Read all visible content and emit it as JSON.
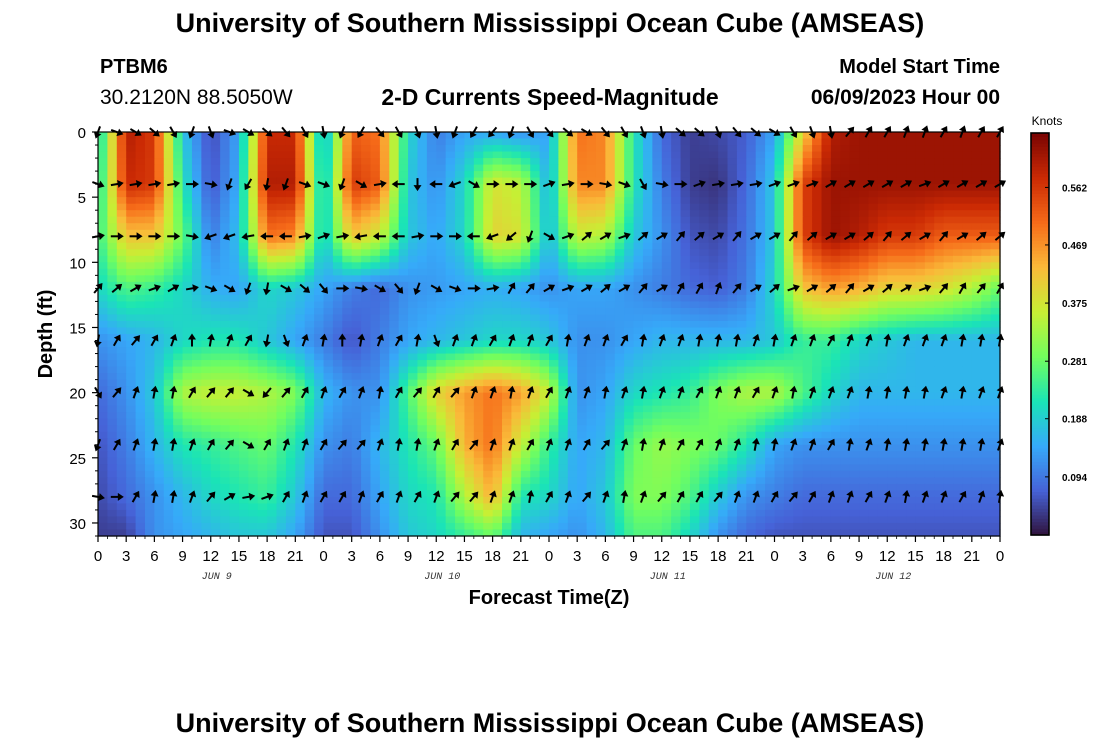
{
  "header": {
    "title": "University of Southern Mississippi Ocean Cube (AMSEAS)",
    "station_id": "PTBM6",
    "station_coords": "30.2120N  88.5050W",
    "subtitle": "2-D Currents Speed-Magnitude",
    "model_start_label": "Model Start Time",
    "model_start_value": "06/09/2023 Hour 00"
  },
  "footer": {
    "title": "University of Southern Mississippi Ocean Cube (AMSEAS)"
  },
  "chart_data": {
    "type": "heatmap",
    "title": "2-D Currents Speed-Magnitude",
    "xlabel": "Forecast Time(Z)",
    "ylabel": "Depth (ft)",
    "x_range_hours": [
      0,
      96
    ],
    "ylim": [
      0,
      31
    ],
    "y_ticks": [
      0,
      5,
      10,
      15,
      20,
      25,
      30
    ],
    "x_tick_labels": [
      "0",
      "3",
      "6",
      "9",
      "12",
      "15",
      "18",
      "21",
      "0",
      "3",
      "6",
      "9",
      "12",
      "15",
      "18",
      "21",
      "0",
      "3",
      "6",
      "9",
      "12",
      "15",
      "18",
      "21",
      "0",
      "3",
      "6",
      "9",
      "12",
      "15",
      "18",
      "21",
      "0"
    ],
    "day_labels": [
      "JUN 9",
      "JUN 10",
      "JUN 11",
      "JUN 12"
    ],
    "colorbar": {
      "label": "Knots",
      "min": 0,
      "max": 0.65,
      "ticks": [
        0.094,
        0.188,
        0.281,
        0.375,
        0.469,
        0.562
      ],
      "tick_labels": [
        "0.094",
        "0.188",
        "0.281",
        "0.375",
        "0.469",
        "0.562"
      ],
      "colors": [
        "#30123b",
        "#4662d7",
        "#36aaf9",
        "#1ae4b6",
        "#72fe5e",
        "#c7ef34",
        "#faba39",
        "#f66b19",
        "#cb2a04",
        "#7a0403"
      ]
    },
    "depth_levels_ft": [
      0,
      4,
      8,
      12,
      16,
      20,
      24,
      28,
      31
    ],
    "time_bins_hours": [
      0,
      3,
      6,
      9,
      12,
      15,
      18,
      21,
      24,
      27,
      30,
      33,
      36,
      39,
      42,
      45,
      48,
      51,
      54,
      57,
      60,
      63,
      66,
      69,
      72,
      75,
      78,
      81,
      84,
      87,
      90,
      93,
      96
    ],
    "speed_knots": [
      [
        0.18,
        0.6,
        0.56,
        0.18,
        0.05,
        0.14,
        0.58,
        0.58,
        0.14,
        0.52,
        0.5,
        0.2,
        0.1,
        0.14,
        0.14,
        0.12,
        0.14,
        0.5,
        0.48,
        0.22,
        0.08,
        0.04,
        0.05,
        0.07,
        0.14,
        0.4,
        0.6,
        0.62,
        0.62,
        0.62,
        0.62,
        0.62,
        0.62
      ],
      [
        0.2,
        0.58,
        0.56,
        0.22,
        0.06,
        0.15,
        0.6,
        0.6,
        0.16,
        0.56,
        0.52,
        0.18,
        0.12,
        0.2,
        0.38,
        0.35,
        0.15,
        0.48,
        0.48,
        0.22,
        0.1,
        0.04,
        0.03,
        0.08,
        0.18,
        0.55,
        0.62,
        0.62,
        0.62,
        0.62,
        0.62,
        0.62,
        0.62
      ],
      [
        0.24,
        0.42,
        0.42,
        0.28,
        0.1,
        0.17,
        0.5,
        0.48,
        0.18,
        0.42,
        0.36,
        0.18,
        0.14,
        0.2,
        0.4,
        0.38,
        0.16,
        0.36,
        0.34,
        0.18,
        0.12,
        0.06,
        0.05,
        0.09,
        0.18,
        0.55,
        0.62,
        0.6,
        0.56,
        0.56,
        0.52,
        0.52,
        0.52
      ],
      [
        0.2,
        0.26,
        0.24,
        0.2,
        0.15,
        0.14,
        0.2,
        0.18,
        0.14,
        0.1,
        0.08,
        0.12,
        0.13,
        0.14,
        0.15,
        0.14,
        0.12,
        0.14,
        0.14,
        0.12,
        0.1,
        0.08,
        0.07,
        0.1,
        0.2,
        0.42,
        0.46,
        0.44,
        0.4,
        0.4,
        0.38,
        0.34,
        0.28
      ],
      [
        0.12,
        0.14,
        0.16,
        0.2,
        0.22,
        0.22,
        0.18,
        0.14,
        0.1,
        0.06,
        0.1,
        0.14,
        0.16,
        0.18,
        0.2,
        0.2,
        0.18,
        0.12,
        0.12,
        0.14,
        0.16,
        0.16,
        0.16,
        0.16,
        0.18,
        0.24,
        0.24,
        0.2,
        0.18,
        0.16,
        0.16,
        0.16,
        0.16
      ],
      [
        0.08,
        0.12,
        0.18,
        0.34,
        0.36,
        0.36,
        0.34,
        0.3,
        0.16,
        0.12,
        0.12,
        0.26,
        0.4,
        0.46,
        0.5,
        0.46,
        0.36,
        0.12,
        0.14,
        0.2,
        0.22,
        0.24,
        0.3,
        0.34,
        0.34,
        0.26,
        0.2,
        0.16,
        0.16,
        0.16,
        0.16,
        0.16,
        0.16
      ],
      [
        0.06,
        0.1,
        0.16,
        0.22,
        0.24,
        0.26,
        0.28,
        0.22,
        0.12,
        0.1,
        0.16,
        0.22,
        0.28,
        0.44,
        0.5,
        0.36,
        0.24,
        0.14,
        0.16,
        0.28,
        0.32,
        0.3,
        0.28,
        0.22,
        0.14,
        0.12,
        0.12,
        0.12,
        0.12,
        0.12,
        0.12,
        0.12,
        0.12
      ],
      [
        0.05,
        0.08,
        0.12,
        0.16,
        0.2,
        0.22,
        0.24,
        0.18,
        0.08,
        0.08,
        0.14,
        0.2,
        0.22,
        0.34,
        0.44,
        0.22,
        0.2,
        0.14,
        0.18,
        0.3,
        0.3,
        0.26,
        0.18,
        0.12,
        0.1,
        0.08,
        0.08,
        0.08,
        0.08,
        0.08,
        0.08,
        0.08,
        0.08
      ],
      [
        0.04,
        0.04,
        0.12,
        0.14,
        0.16,
        0.18,
        0.18,
        0.14,
        0.06,
        0.06,
        0.12,
        0.18,
        0.2,
        0.24,
        0.28,
        0.16,
        0.14,
        0.12,
        0.16,
        0.26,
        0.26,
        0.2,
        0.12,
        0.08,
        0.06,
        0.06,
        0.06,
        0.06,
        0.06,
        0.06,
        0.06,
        0.06,
        0.06
      ]
    ],
    "arrow_depths_ft": [
      0,
      4,
      8,
      12,
      16,
      20,
      24,
      28
    ],
    "arrow_times_hours": [
      0,
      2,
      4,
      6,
      8,
      10,
      12,
      14,
      16,
      18,
      20,
      22,
      24,
      26,
      28,
      30,
      32,
      34,
      36,
      38,
      40,
      42,
      44,
      46,
      48,
      50,
      52,
      54,
      56,
      58,
      60,
      62,
      64,
      66,
      68,
      70,
      72,
      74,
      76,
      78,
      80,
      82,
      84,
      86,
      88,
      90,
      92,
      94,
      96
    ],
    "arrow_directions_deg": [
      [
        200,
        110,
        120,
        130,
        150,
        200,
        160,
        110,
        120,
        130,
        140,
        150,
        170,
        200,
        210,
        140,
        150,
        160,
        170,
        200,
        210,
        220,
        200,
        150,
        140,
        130,
        120,
        140,
        150,
        160,
        170,
        130,
        130,
        160,
        140,
        130,
        120,
        150,
        160,
        170,
        40,
        30,
        30,
        20,
        20,
        30,
        20,
        30,
        30
      ],
      [
        110,
        80,
        80,
        80,
        80,
        90,
        100,
        200,
        210,
        190,
        200,
        110,
        110,
        200,
        120,
        80,
        270,
        180,
        270,
        250,
        120,
        90,
        90,
        90,
        70,
        80,
        90,
        100,
        110,
        150,
        100,
        90,
        70,
        80,
        80,
        80,
        70,
        70,
        70,
        60,
        60,
        60,
        60,
        60,
        70,
        60,
        60,
        60,
        60
      ],
      [
        80,
        90,
        90,
        90,
        90,
        100,
        250,
        250,
        260,
        270,
        270,
        80,
        70,
        80,
        260,
        270,
        270,
        80,
        90,
        90,
        270,
        250,
        230,
        200,
        120,
        70,
        50,
        60,
        70,
        50,
        60,
        40,
        50,
        60,
        40,
        60,
        60,
        40,
        50,
        60,
        60,
        50,
        40,
        50,
        60,
        40,
        60,
        50,
        50
      ],
      [
        40,
        50,
        60,
        70,
        60,
        80,
        110,
        120,
        200,
        190,
        120,
        130,
        140,
        90,
        100,
        120,
        140,
        200,
        120,
        110,
        90,
        80,
        30,
        40,
        60,
        70,
        60,
        50,
        60,
        40,
        60,
        30,
        30,
        20,
        40,
        60,
        50,
        70,
        60,
        50,
        40,
        60,
        50,
        60,
        70,
        40,
        30,
        40,
        30
      ],
      [
        190,
        30,
        40,
        30,
        20,
        0,
        10,
        20,
        30,
        190,
        160,
        20,
        10,
        0,
        10,
        20,
        30,
        10,
        160,
        20,
        20,
        30,
        20,
        20,
        30,
        10,
        20,
        20,
        30,
        10,
        20,
        20,
        10,
        10,
        10,
        20,
        10,
        20,
        20,
        30,
        20,
        20,
        10,
        20,
        20,
        20,
        10,
        10,
        10
      ],
      [
        150,
        40,
        20,
        10,
        10,
        30,
        40,
        40,
        120,
        220,
        40,
        30,
        20,
        30,
        20,
        10,
        30,
        40,
        30,
        40,
        20,
        20,
        10,
        20,
        30,
        20,
        20,
        10,
        20,
        10,
        20,
        20,
        30,
        20,
        20,
        30,
        20,
        10,
        20,
        20,
        20,
        10,
        10,
        10,
        10,
        20,
        10,
        20,
        20
      ],
      [
        200,
        30,
        20,
        10,
        10,
        20,
        30,
        40,
        120,
        30,
        20,
        20,
        30,
        40,
        40,
        20,
        10,
        10,
        20,
        30,
        40,
        20,
        20,
        30,
        20,
        20,
        30,
        40,
        20,
        10,
        20,
        30,
        30,
        20,
        20,
        10,
        10,
        20,
        20,
        30,
        10,
        20,
        10,
        10,
        10,
        10,
        10,
        10,
        20
      ],
      [
        100,
        90,
        30,
        10,
        10,
        20,
        40,
        60,
        80,
        70,
        30,
        20,
        30,
        30,
        20,
        30,
        20,
        30,
        20,
        40,
        40,
        20,
        20,
        10,
        30,
        20,
        40,
        20,
        10,
        20,
        40,
        30,
        30,
        40,
        20,
        20,
        30,
        40,
        30,
        20,
        20,
        30,
        20,
        10,
        20,
        20,
        30,
        20,
        10
      ]
    ]
  }
}
